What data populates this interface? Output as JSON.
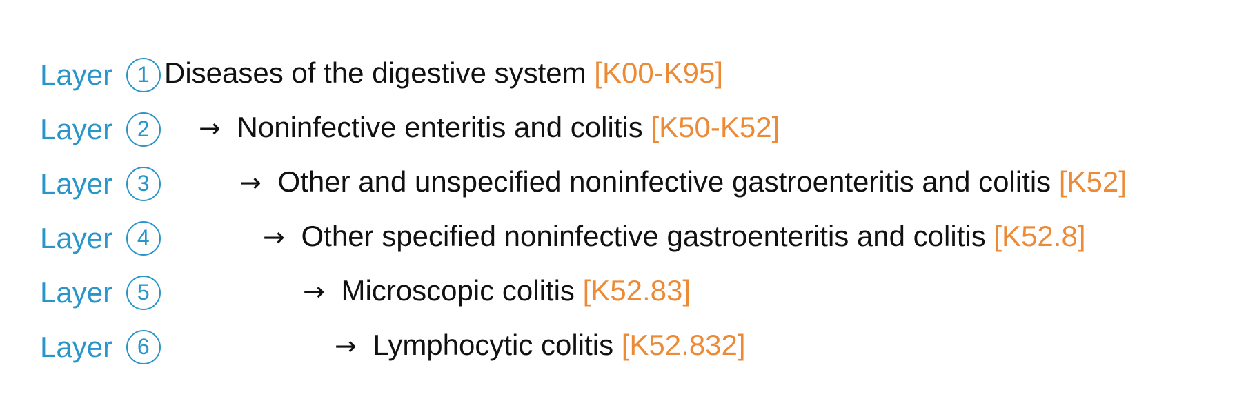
{
  "hierarchy": {
    "arrow_glyph": "→",
    "layer_word": "Layer",
    "rows": [
      {
        "badge": "1",
        "label": "Diseases of the digestive system",
        "code": "[K00-K95]"
      },
      {
        "badge": "2",
        "label": "Noninfective enteritis and colitis",
        "code": "[K50-K52]"
      },
      {
        "badge": "3",
        "label": "Other and unspecified noninfective gastroenteritis and colitis",
        "code": "[K52]"
      },
      {
        "badge": "4",
        "label": "Other specified noninfective gastroenteritis and colitis",
        "code": "[K52.8]"
      },
      {
        "badge": "5",
        "label": "Microscopic colitis",
        "code": "[K52.83]"
      },
      {
        "badge": "6",
        "label": "Lymphocytic colitis",
        "code": "[K52.832]"
      }
    ]
  },
  "colors": {
    "layer_label": "#2a95c9",
    "code": "#ec8a36",
    "text": "#111111"
  }
}
